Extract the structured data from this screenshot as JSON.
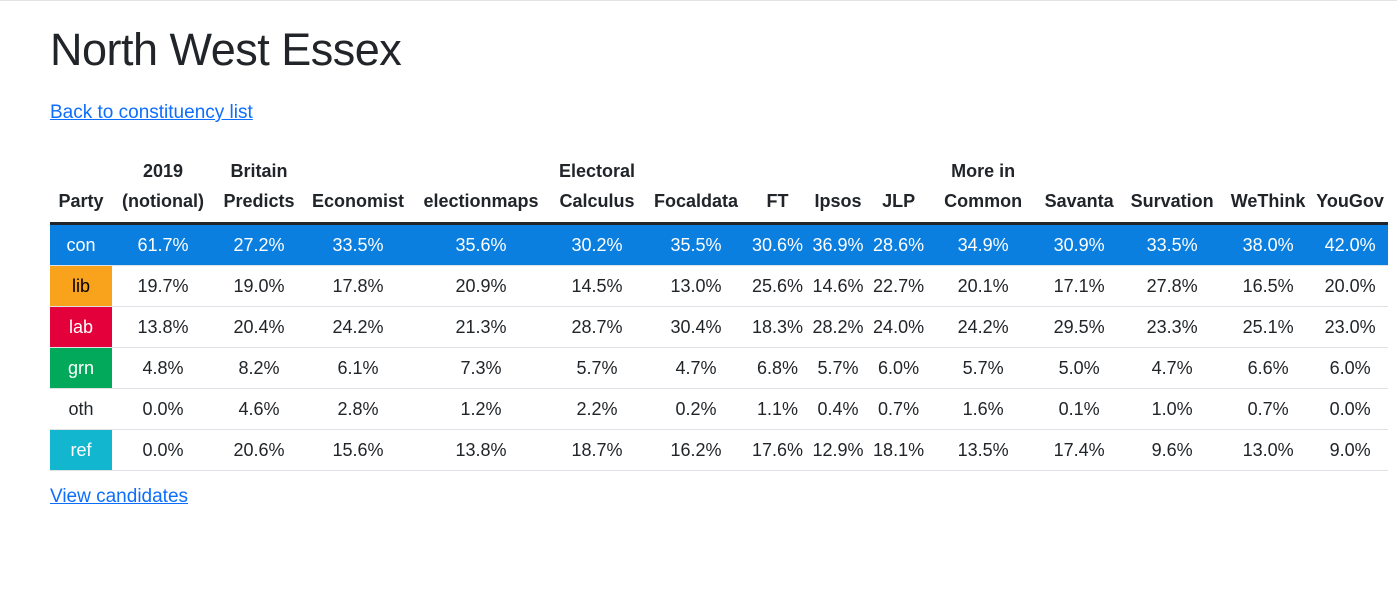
{
  "title": "North West Essex",
  "back_link": "Back to constituency list",
  "view_candidates_link": "View candidates",
  "table": {
    "headers": [
      [
        "",
        "Party"
      ],
      [
        "2019",
        "(notional)"
      ],
      [
        "Britain",
        "Predicts"
      ],
      [
        "",
        "Economist"
      ],
      [
        "",
        "electionmaps"
      ],
      [
        "Electoral",
        "Calculus"
      ],
      [
        "",
        "Focaldata"
      ],
      [
        "",
        "FT"
      ],
      [
        "",
        "Ipsos"
      ],
      [
        "",
        "JLP"
      ],
      [
        "More in",
        "Common"
      ],
      [
        "",
        "Savanta"
      ],
      [
        "",
        "Survation"
      ],
      [
        "",
        "WeThink"
      ],
      [
        "",
        "YouGov"
      ]
    ],
    "rows": [
      {
        "party": "con",
        "color": "#0a7fe0",
        "highlight": true,
        "values": [
          "61.7%",
          "27.2%",
          "33.5%",
          "35.6%",
          "30.2%",
          "35.5%",
          "30.6%",
          "36.9%",
          "28.6%",
          "34.9%",
          "30.9%",
          "33.5%",
          "38.0%",
          "42.0%"
        ]
      },
      {
        "party": "lib",
        "color": "#f9a21b",
        "highlight": false,
        "values": [
          "19.7%",
          "19.0%",
          "17.8%",
          "20.9%",
          "14.5%",
          "13.0%",
          "25.6%",
          "14.6%",
          "22.7%",
          "20.1%",
          "17.1%",
          "27.8%",
          "16.5%",
          "20.0%"
        ]
      },
      {
        "party": "lab",
        "color": "#e4003b",
        "highlight": false,
        "values": [
          "13.8%",
          "20.4%",
          "24.2%",
          "21.3%",
          "28.7%",
          "30.4%",
          "18.3%",
          "28.2%",
          "24.0%",
          "24.2%",
          "29.5%",
          "23.3%",
          "25.1%",
          "23.0%"
        ]
      },
      {
        "party": "grn",
        "color": "#02a95b",
        "highlight": false,
        "values": [
          "4.8%",
          "8.2%",
          "6.1%",
          "7.3%",
          "5.7%",
          "4.7%",
          "6.8%",
          "5.7%",
          "6.0%",
          "5.7%",
          "5.0%",
          "4.7%",
          "6.6%",
          "6.0%"
        ]
      },
      {
        "party": "oth",
        "color": "#ffffff",
        "highlight": false,
        "values": [
          "0.0%",
          "4.6%",
          "2.8%",
          "1.2%",
          "2.2%",
          "0.2%",
          "1.1%",
          "0.4%",
          "0.7%",
          "1.6%",
          "0.1%",
          "1.0%",
          "0.7%",
          "0.0%"
        ]
      },
      {
        "party": "ref",
        "color": "#12b6cf",
        "highlight": false,
        "values": [
          "0.0%",
          "20.6%",
          "15.6%",
          "13.8%",
          "18.7%",
          "16.2%",
          "17.6%",
          "12.9%",
          "18.1%",
          "13.5%",
          "17.4%",
          "9.6%",
          "13.0%",
          "9.0%"
        ]
      }
    ]
  }
}
